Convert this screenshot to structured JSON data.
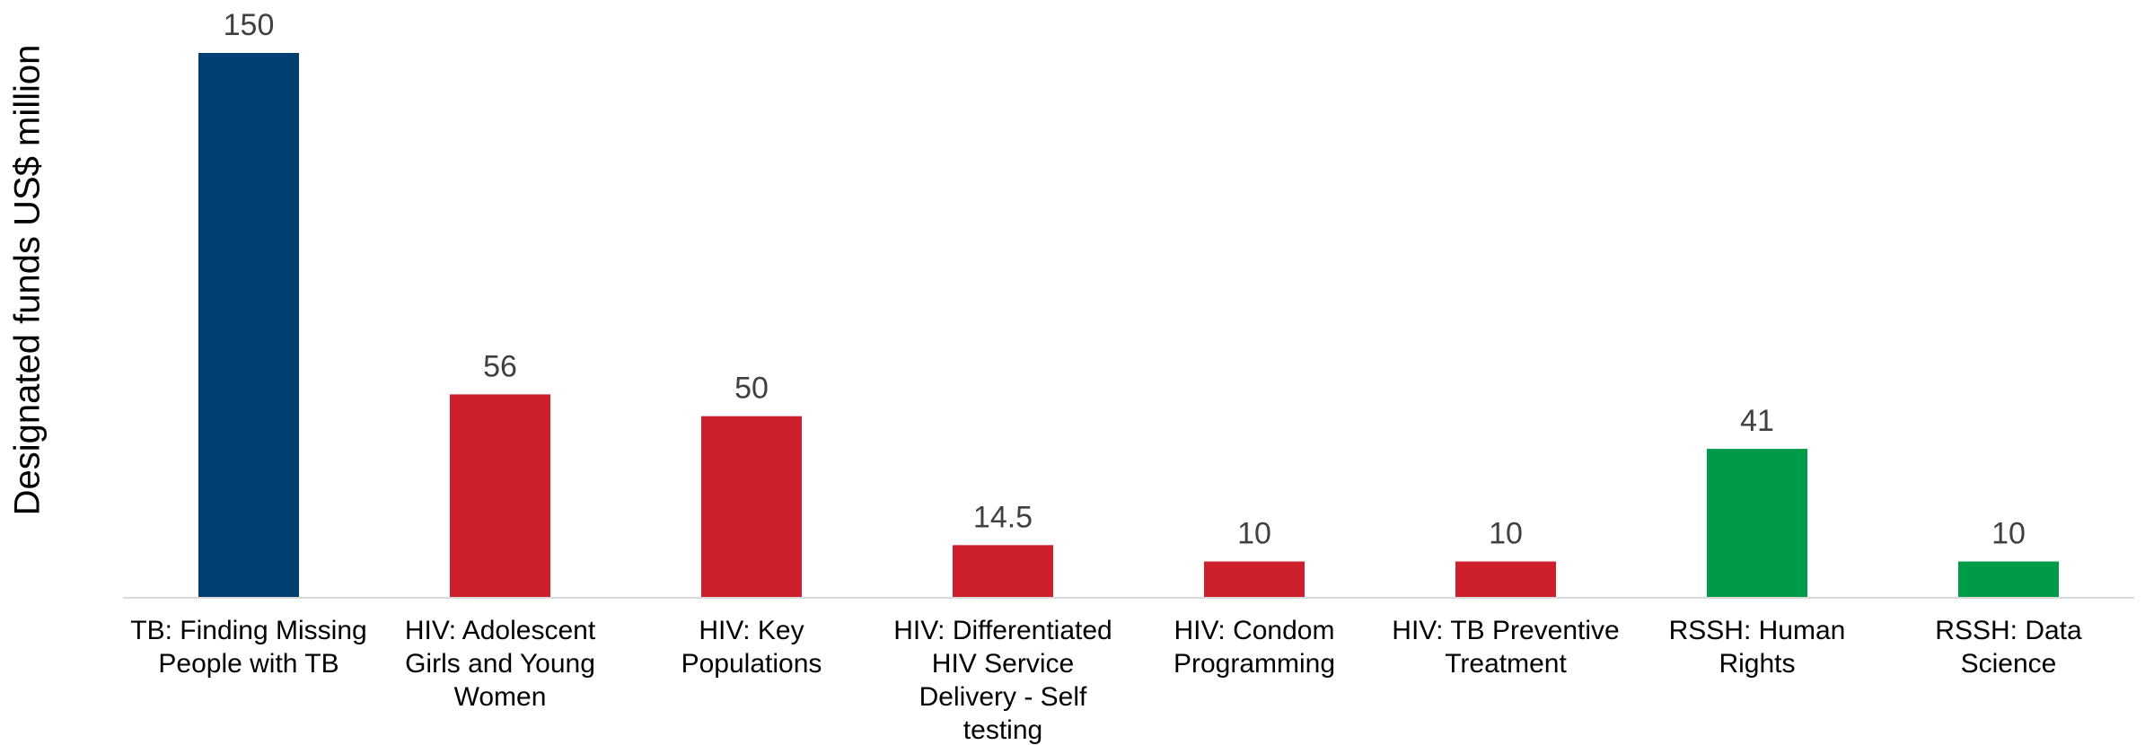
{
  "chart_data": {
    "type": "bar",
    "y_label": "Designated funds US$ million",
    "categories": [
      "TB: Finding Missing People with TB",
      "HIV: Adolescent Girls and Young Women",
      "HIV: Key Populations",
      "HIV: Differentiated HIV Service Delivery - Self testing",
      "HIV: Condom Programming",
      "HIV: TB Preventive Treatment",
      "RSSH: Human Rights",
      "RSSH: Data Science"
    ],
    "values": [
      150,
      56,
      50,
      14.5,
      10,
      10,
      41,
      10
    ],
    "colors": [
      "#003f72",
      "#ce1f2d",
      "#ce1f2d",
      "#ce1f2d",
      "#ce1f2d",
      "#ce1f2d",
      "#009b48",
      "#009b48"
    ],
    "ylim": [
      0,
      150
    ],
    "grid": false
  }
}
